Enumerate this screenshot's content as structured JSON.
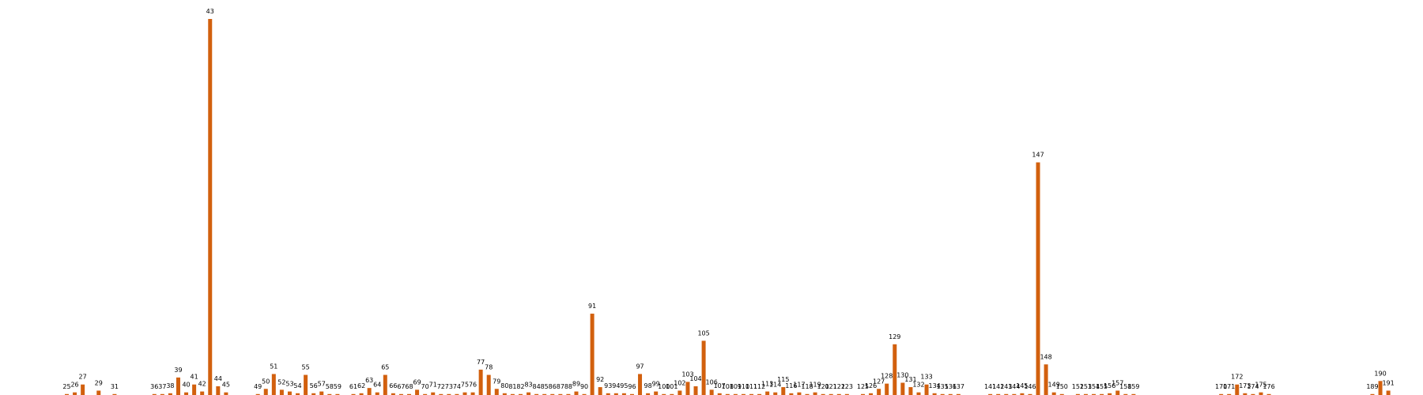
{
  "chart_data": {
    "type": "bar",
    "title": "",
    "xlabel": "",
    "ylabel": "",
    "ylim": [
      0,
      43
    ],
    "grid": false,
    "legend": "none",
    "bar_color": "#d2600e",
    "categories": [
      "25",
      "26",
      "27",
      "29",
      "31",
      "36",
      "37",
      "38",
      "39",
      "40",
      "41",
      "42",
      "43",
      "44",
      "45",
      "49",
      "50",
      "51",
      "52",
      "53",
      "54",
      "55",
      "56",
      "57",
      "58",
      "59",
      "61",
      "62",
      "63",
      "64",
      "65",
      "66",
      "67",
      "68",
      "69",
      "70",
      "71",
      "72",
      "73",
      "74",
      "75",
      "76",
      "77",
      "78",
      "79",
      "80",
      "81",
      "82",
      "83",
      "84",
      "85",
      "86",
      "87",
      "88",
      "89",
      "90",
      "91",
      "92",
      "93",
      "94",
      "95",
      "96",
      "97",
      "98",
      "99",
      "100",
      "101",
      "102",
      "103",
      "104",
      "105",
      "106",
      "107",
      "108",
      "109",
      "110",
      "111",
      "112",
      "113",
      "114",
      "115",
      "116",
      "117",
      "118",
      "119",
      "120",
      "121",
      "122",
      "123",
      "125",
      "126",
      "127",
      "128",
      "129",
      "130",
      "131",
      "132",
      "133",
      "134",
      "135",
      "136",
      "137",
      "141",
      "142",
      "143",
      "144",
      "145",
      "146",
      "147",
      "148",
      "149",
      "150",
      "152",
      "153",
      "154",
      "155",
      "156",
      "157",
      "158",
      "159",
      "170",
      "171",
      "172",
      "173",
      "174",
      "175",
      "176",
      "189",
      "190",
      "191"
    ],
    "values": [
      0.1,
      0.3,
      1.2,
      0.5,
      0.1,
      0.1,
      0.1,
      0.2,
      2.0,
      0.3,
      1.2,
      0.4,
      43.0,
      1.0,
      0.3,
      0.1,
      0.7,
      2.4,
      0.6,
      0.4,
      0.2,
      2.3,
      0.2,
      0.4,
      0.1,
      0.1,
      0.1,
      0.2,
      0.8,
      0.3,
      2.3,
      0.2,
      0.1,
      0.1,
      0.6,
      0.1,
      0.3,
      0.0,
      0.1,
      0.1,
      0.3,
      0.3,
      2.9,
      2.3,
      0.7,
      0.2,
      0.1,
      0.1,
      0.3,
      0.1,
      0.1,
      0.1,
      0.1,
      0.1,
      0.4,
      0.1,
      9.3,
      0.9,
      0.2,
      0.2,
      0.2,
      0.1,
      2.4,
      0.2,
      0.4,
      0.1,
      0.1,
      0.5,
      1.5,
      1.0,
      6.2,
      0.6,
      0.2,
      0.1,
      0.1,
      0.0,
      0.1,
      0.1,
      0.4,
      0.3,
      0.9,
      0.2,
      0.3,
      0.1,
      0.3,
      0.1,
      0.1,
      0.1,
      0.1,
      0.1,
      0.2,
      0.7,
      1.3,
      5.8,
      1.4,
      0.9,
      0.3,
      1.2,
      0.2,
      0.1,
      0.1,
      0.0,
      0.1,
      0.1,
      0.1,
      0.1,
      0.2,
      0.1,
      26.6,
      3.5,
      0.3,
      0.1,
      0.1,
      0.1,
      0.1,
      0.1,
      0.2,
      0.5,
      0.1,
      0.1,
      0.1,
      0.1,
      1.2,
      0.2,
      0.1,
      0.3,
      0.1,
      0.1,
      1.6,
      0.5
    ]
  }
}
